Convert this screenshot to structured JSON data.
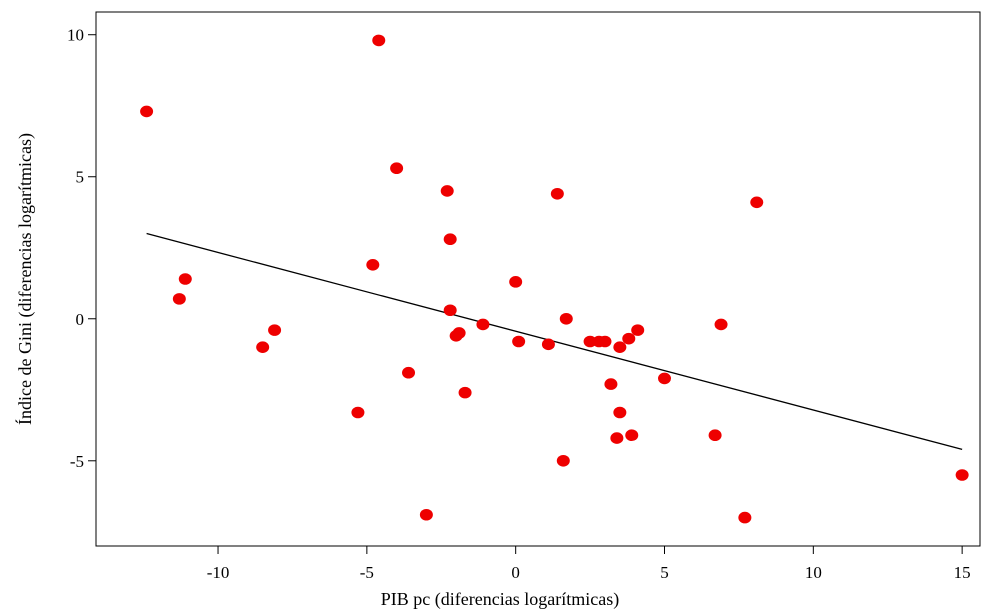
{
  "chart_data": {
    "type": "scatter",
    "title": "",
    "xlabel": "PIB pc (diferencias logarítmicas)",
    "ylabel": "Índice de Gini (diferencias logarítmicas)",
    "xlim": [
      -14.1,
      15.6
    ],
    "ylim": [
      -8.0,
      10.8
    ],
    "xticks": [
      -10,
      -5,
      0,
      5,
      10,
      15
    ],
    "yticks": [
      -5,
      0,
      5,
      10
    ],
    "xtick_labels": [
      "-10",
      "-5",
      "0",
      "5",
      "10",
      "15"
    ],
    "ytick_labels": [
      "-5",
      "0",
      "5",
      "10"
    ],
    "grid": false,
    "marker_color": "#ee0000",
    "line_color": "#000000",
    "points": [
      {
        "x": -12.4,
        "y": 7.3
      },
      {
        "x": -11.3,
        "y": 0.7
      },
      {
        "x": -11.1,
        "y": 1.4
      },
      {
        "x": -8.5,
        "y": -1.0
      },
      {
        "x": -8.1,
        "y": -0.4
      },
      {
        "x": -5.3,
        "y": -3.3
      },
      {
        "x": -4.8,
        "y": 1.9
      },
      {
        "x": -4.6,
        "y": 9.8
      },
      {
        "x": -4.0,
        "y": 5.3
      },
      {
        "x": -3.6,
        "y": -1.9
      },
      {
        "x": -3.0,
        "y": -6.9
      },
      {
        "x": -2.3,
        "y": 4.5
      },
      {
        "x": -2.2,
        "y": 2.8
      },
      {
        "x": -2.2,
        "y": 0.3
      },
      {
        "x": -2.0,
        "y": -0.6
      },
      {
        "x": -1.9,
        "y": -0.5
      },
      {
        "x": -1.7,
        "y": -2.6
      },
      {
        "x": -1.1,
        "y": -0.2
      },
      {
        "x": 0.0,
        "y": 1.3
      },
      {
        "x": 0.1,
        "y": -0.8
      },
      {
        "x": 1.1,
        "y": -0.9
      },
      {
        "x": 1.4,
        "y": 4.4
      },
      {
        "x": 1.6,
        "y": -5.0
      },
      {
        "x": 1.7,
        "y": 0.0
      },
      {
        "x": 2.5,
        "y": -0.8
      },
      {
        "x": 2.8,
        "y": -0.8
      },
      {
        "x": 3.0,
        "y": -0.8
      },
      {
        "x": 3.2,
        "y": -2.3
      },
      {
        "x": 3.4,
        "y": -4.2
      },
      {
        "x": 3.5,
        "y": -3.3
      },
      {
        "x": 3.5,
        "y": -1.0
      },
      {
        "x": 3.8,
        "y": -0.7
      },
      {
        "x": 3.9,
        "y": -4.1
      },
      {
        "x": 4.1,
        "y": -0.4
      },
      {
        "x": 5.0,
        "y": -2.1
      },
      {
        "x": 6.7,
        "y": -4.1
      },
      {
        "x": 6.9,
        "y": -0.2
      },
      {
        "x": 7.7,
        "y": -7.0
      },
      {
        "x": 8.1,
        "y": 4.1
      },
      {
        "x": 15.0,
        "y": -5.5
      }
    ],
    "fit_line": {
      "x": [
        -12.4,
        15.0
      ],
      "y": [
        3.0,
        -4.6
      ]
    }
  }
}
